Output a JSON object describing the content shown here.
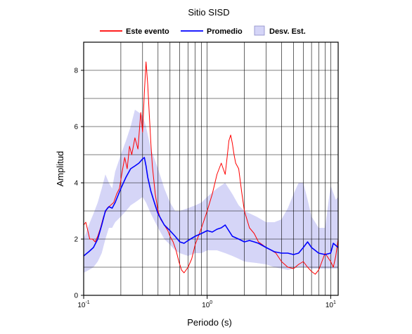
{
  "chart_data": {
    "type": "line",
    "title": "Sitio SISD",
    "xlabel": "Periodo (s)",
    "ylabel": "Amplitud",
    "x_scale": "log",
    "xlim": [
      0.1,
      11.5
    ],
    "ylim": [
      0,
      9
    ],
    "grid": true,
    "legend_position": "top",
    "x_tick_labels": [
      {
        "value": 0.1,
        "base": "10",
        "exp": "-1"
      },
      {
        "value": 1,
        "base": "10",
        "exp": "0"
      },
      {
        "value": 10,
        "base": "10",
        "exp": "1"
      }
    ],
    "y_tick_labels": [
      {
        "value": 0,
        "label": "0"
      },
      {
        "value": 2,
        "label": "2"
      },
      {
        "value": 4,
        "label": "4"
      },
      {
        "value": 6,
        "label": "6"
      },
      {
        "value": 8,
        "label": "8"
      }
    ],
    "legend": [
      {
        "label": "Este evento",
        "kind": "line",
        "color": "#ff0000"
      },
      {
        "label": "Promedio",
        "kind": "line",
        "color": "#0000ff"
      },
      {
        "label": "Desv. Est.",
        "kind": "band",
        "color": "#d5d5f7"
      }
    ],
    "series": [
      {
        "name": "Este evento",
        "color": "#ff0000",
        "x": [
          0.1,
          0.104,
          0.108,
          0.112,
          0.118,
          0.124,
          0.13,
          0.137,
          0.145,
          0.155,
          0.165,
          0.175,
          0.185,
          0.195,
          0.205,
          0.215,
          0.225,
          0.235,
          0.245,
          0.26,
          0.275,
          0.29,
          0.3,
          0.31,
          0.32,
          0.33,
          0.34,
          0.35,
          0.36,
          0.38,
          0.4,
          0.42,
          0.45,
          0.48,
          0.5,
          0.53,
          0.56,
          0.59,
          0.62,
          0.65,
          0.7,
          0.75,
          0.8,
          0.9,
          1.0,
          1.1,
          1.2,
          1.3,
          1.4,
          1.45,
          1.5,
          1.55,
          1.6,
          1.65,
          1.7,
          1.8,
          1.9,
          2.0,
          2.2,
          2.4,
          2.6,
          2.8,
          3.0,
          3.3,
          3.6,
          4.0,
          4.5,
          5.0,
          5.5,
          6.0,
          6.5,
          7.0,
          7.5,
          8.0,
          8.5,
          9.0,
          10.0,
          10.5,
          11.0,
          11.5
        ],
        "y": [
          2.5,
          2.6,
          2.3,
          2.0,
          2.0,
          1.9,
          2.1,
          2.4,
          2.8,
          3.1,
          3.2,
          3.3,
          3.6,
          3.8,
          4.4,
          4.9,
          4.5,
          5.3,
          5.0,
          5.6,
          5.2,
          6.5,
          5.8,
          7.2,
          8.3,
          7.5,
          6.4,
          5.4,
          4.6,
          3.6,
          3.0,
          2.7,
          2.5,
          2.3,
          2.1,
          1.9,
          1.6,
          1.2,
          0.9,
          0.8,
          1.0,
          1.3,
          1.8,
          2.4,
          3.0,
          3.6,
          4.3,
          4.7,
          4.3,
          4.9,
          5.5,
          5.7,
          5.4,
          5.0,
          4.7,
          4.5,
          3.7,
          3.0,
          2.4,
          2.2,
          1.9,
          1.8,
          1.7,
          1.6,
          1.5,
          1.2,
          1.0,
          0.95,
          1.1,
          1.2,
          1.0,
          0.85,
          0.75,
          0.9,
          1.2,
          1.5,
          1.2,
          1.0,
          1.4,
          2.0
        ]
      },
      {
        "name": "Promedio",
        "color": "#0000ff",
        "x": [
          0.1,
          0.11,
          0.12,
          0.13,
          0.14,
          0.15,
          0.16,
          0.17,
          0.18,
          0.2,
          0.22,
          0.24,
          0.26,
          0.28,
          0.3,
          0.31,
          0.32,
          0.33,
          0.35,
          0.38,
          0.4,
          0.45,
          0.5,
          0.55,
          0.6,
          0.65,
          0.7,
          0.8,
          0.9,
          1.0,
          1.1,
          1.2,
          1.3,
          1.4,
          1.6,
          1.8,
          2.0,
          2.2,
          2.4,
          2.6,
          3.0,
          3.5,
          4.0,
          4.5,
          5.0,
          5.5,
          6.0,
          6.5,
          7.0,
          8.0,
          9.0,
          10.0,
          10.5,
          11.5
        ],
        "y": [
          1.4,
          1.55,
          1.7,
          2.0,
          2.5,
          3.0,
          3.15,
          3.1,
          3.3,
          3.8,
          4.2,
          4.5,
          4.6,
          4.7,
          4.85,
          4.9,
          4.6,
          4.2,
          3.7,
          3.2,
          2.9,
          2.5,
          2.3,
          2.1,
          1.9,
          1.85,
          1.95,
          2.1,
          2.2,
          2.3,
          2.25,
          2.35,
          2.4,
          2.5,
          2.1,
          2.0,
          1.9,
          1.95,
          1.9,
          1.85,
          1.7,
          1.55,
          1.5,
          1.5,
          1.45,
          1.5,
          1.7,
          1.9,
          1.7,
          1.5,
          1.45,
          1.5,
          1.85,
          1.7
        ]
      }
    ],
    "band": {
      "name": "Desv. Est.",
      "color": "#d5d5f7",
      "x": [
        0.1,
        0.11,
        0.12,
        0.13,
        0.14,
        0.15,
        0.16,
        0.17,
        0.18,
        0.2,
        0.22,
        0.24,
        0.26,
        0.28,
        0.3,
        0.32,
        0.35,
        0.4,
        0.45,
        0.5,
        0.55,
        0.6,
        0.7,
        0.8,
        0.9,
        1.0,
        1.2,
        1.4,
        1.6,
        1.8,
        2.0,
        2.5,
        3.0,
        3.5,
        4.0,
        4.5,
        5.0,
        5.5,
        6.0,
        6.5,
        7.0,
        8.0,
        9.0,
        10.0,
        11.0,
        11.5
      ],
      "upper": [
        2.0,
        2.5,
        2.9,
        3.3,
        3.8,
        4.3,
        4.0,
        3.8,
        4.4,
        5.0,
        5.5,
        6.0,
        6.6,
        6.5,
        6.4,
        6.0,
        5.2,
        4.5,
        3.8,
        3.3,
        3.0,
        3.0,
        3.1,
        3.2,
        3.3,
        3.5,
        3.8,
        4.0,
        3.6,
        3.2,
        3.0,
        2.8,
        2.6,
        2.6,
        2.7,
        3.1,
        3.6,
        4.0,
        4.0,
        3.4,
        2.8,
        2.4,
        2.4,
        3.9,
        3.4,
        3.5
      ],
      "lower": [
        0.8,
        0.9,
        1.0,
        1.2,
        1.5,
        2.0,
        2.4,
        2.4,
        2.6,
        2.8,
        3.0,
        3.2,
        3.3,
        3.4,
        3.5,
        3.3,
        2.9,
        2.4,
        2.0,
        1.8,
        1.6,
        1.5,
        1.4,
        1.5,
        1.5,
        1.6,
        1.6,
        1.5,
        1.4,
        1.3,
        1.2,
        1.15,
        1.1,
        1.0,
        0.95,
        0.9,
        0.95,
        1.0,
        1.0,
        1.0,
        0.95,
        0.95,
        0.95,
        0.95,
        0.95,
        0.95
      ]
    }
  }
}
